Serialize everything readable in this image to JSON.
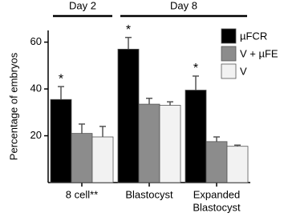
{
  "chart_data": {
    "type": "bar",
    "ylabel": "Percentage of embryos",
    "categories": [
      [
        "8 cell**"
      ],
      [
        "Blastocyst"
      ],
      [
        "Expanded",
        "Blastocyst"
      ]
    ],
    "groups": [
      {
        "label": "Day 2",
        "count": 1
      },
      {
        "label": "Day 8",
        "count": 2
      }
    ],
    "series": [
      {
        "name": "µFCR",
        "color": "#000000",
        "values": [
          35.5,
          57,
          39.5
        ],
        "errors": [
          5.5,
          5,
          6
        ],
        "markers": [
          "*",
          "*",
          "*"
        ]
      },
      {
        "name": "V + µFE",
        "color": "#8c8c8c",
        "values": [
          21,
          33.5,
          17.5
        ],
        "errors": [
          4,
          2.5,
          2
        ]
      },
      {
        "name": "V",
        "color": "#f2f2f2",
        "values": [
          19.5,
          33,
          15.5
        ],
        "errors": [
          4.5,
          1.5,
          0.5
        ]
      }
    ],
    "ylim": [
      0,
      65
    ],
    "yticks": [
      20,
      40,
      60
    ],
    "legend": "top-right"
  }
}
